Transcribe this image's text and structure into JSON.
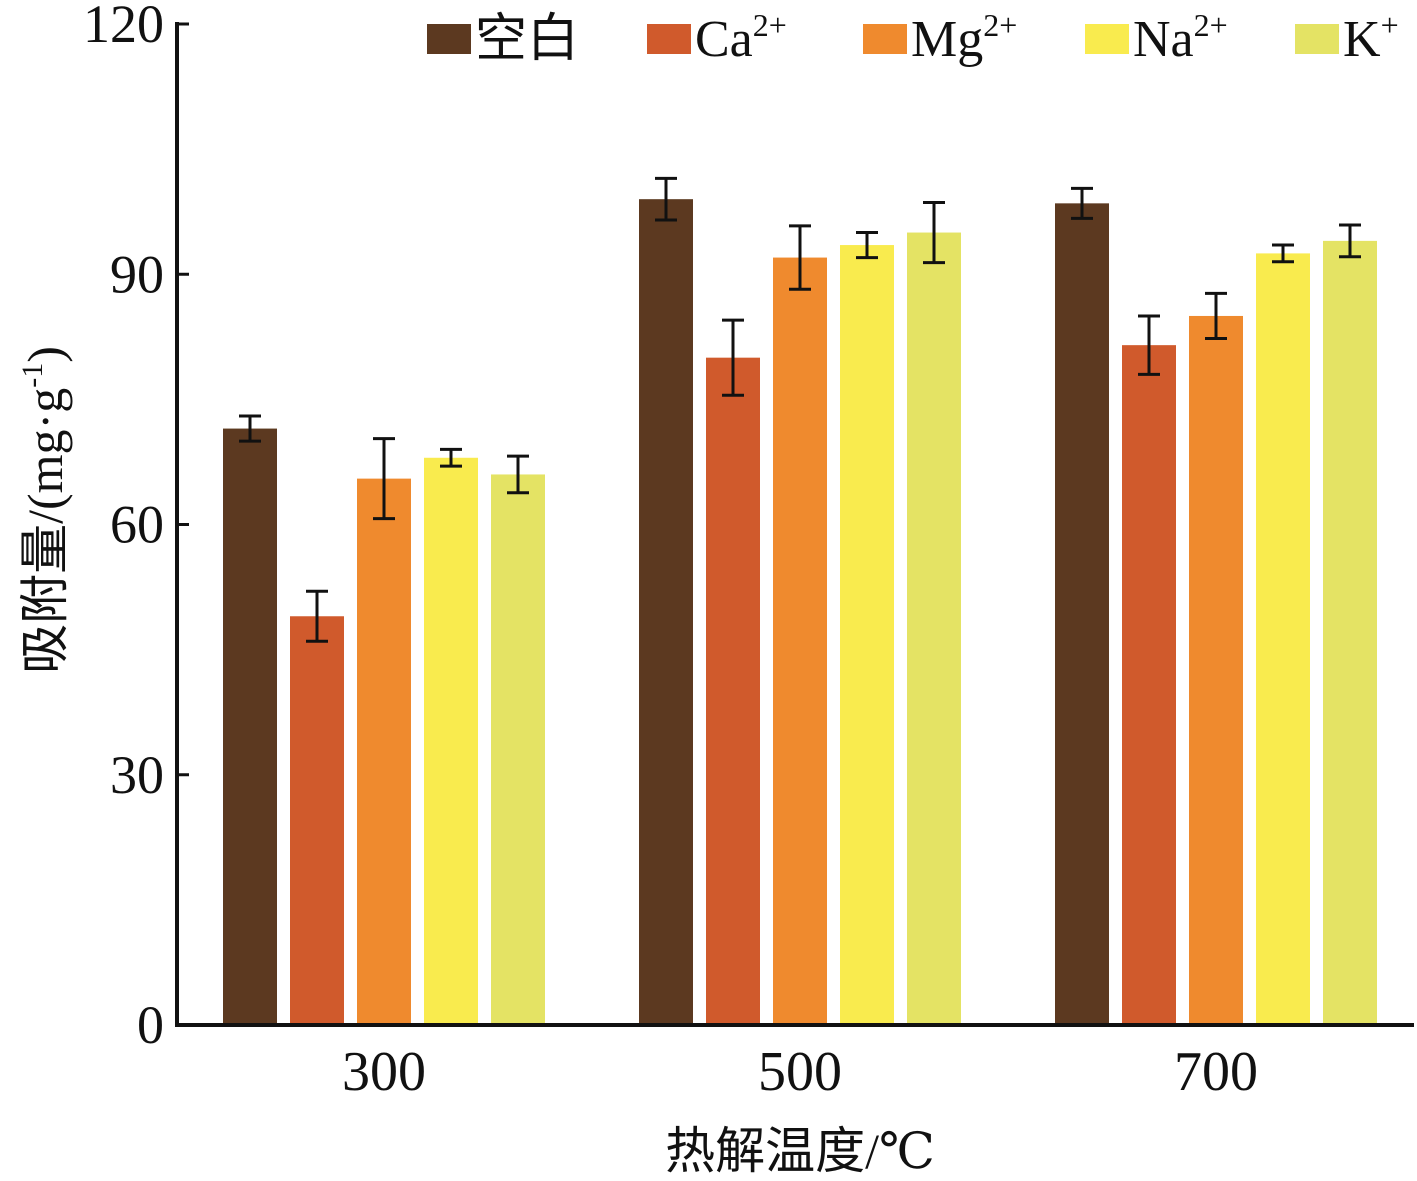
{
  "chart_data": {
    "type": "bar",
    "title": "",
    "xlabel": "热解温度/℃",
    "ylabel": "吸附量/(mg·g",
    "ylabel_sup": "-1",
    "ylabel_close": ")",
    "ylim": [
      0,
      120
    ],
    "yticks": [
      "0",
      "30",
      "60",
      "90",
      "120"
    ],
    "categories": [
      "300",
      "500",
      "700"
    ],
    "legend_position": "top-right",
    "series": [
      {
        "name": "空白",
        "sup": "",
        "color": "#5c3920",
        "values": [
          71.5,
          99.0,
          98.5
        ],
        "errors": [
          1.5,
          2.5,
          1.8
        ]
      },
      {
        "name": "Ca",
        "sup": "2+",
        "color": "#d05a2c",
        "values": [
          49.0,
          80.0,
          81.5
        ],
        "errors": [
          3.0,
          4.5,
          3.5
        ]
      },
      {
        "name": "Mg",
        "sup": "2+",
        "color": "#ef8a2e",
        "values": [
          65.5,
          92.0,
          85.0
        ],
        "errors": [
          4.8,
          3.8,
          2.7
        ]
      },
      {
        "name": "Na",
        "sup": "2+",
        "color": "#f9eb4e",
        "values": [
          68.0,
          93.5,
          92.5
        ],
        "errors": [
          1.0,
          1.5,
          1.0
        ]
      },
      {
        "name": "K",
        "sup": "+",
        "color": "#e4e364",
        "values": [
          66.0,
          95.0,
          94.0
        ],
        "errors": [
          2.2,
          3.6,
          1.9
        ]
      }
    ]
  }
}
